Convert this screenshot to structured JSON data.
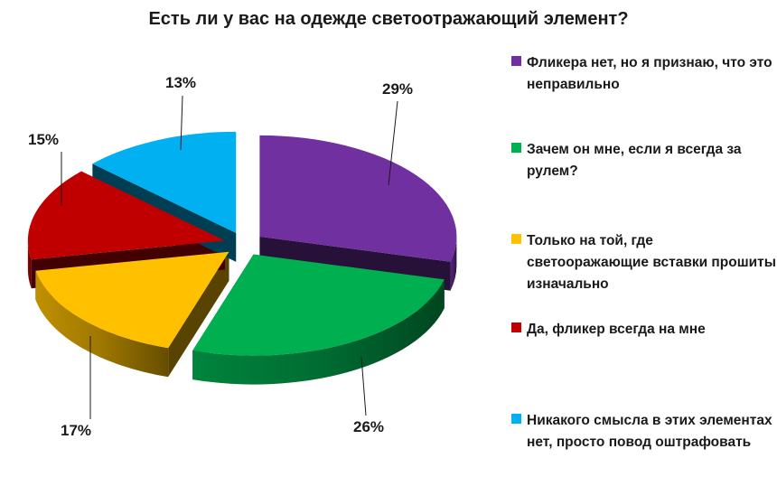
{
  "chart_data": {
    "type": "pie",
    "title": "Есть ли у вас на одежде светоотражающий элемент?",
    "slices": [
      {
        "label": "Фликера нет, но я признаю, что это неправильно",
        "value": 29,
        "value_label": "29%",
        "color": "#7030A0"
      },
      {
        "label": "Зачем он мне, если я всегда за рулем?",
        "value": 26,
        "value_label": "26%",
        "color": "#00B050"
      },
      {
        "label": "Только на той, где светооражающие вставки прошиты изначально",
        "value": 17,
        "value_label": "17%",
        "color": "#FFC000"
      },
      {
        "label": "Да, фликер всегда на мне",
        "value": 15,
        "value_label": "15%",
        "color": "#C00000"
      },
      {
        "label": "Никакого смысла в этих элементах нет, просто повод оштрафовать",
        "value": 13,
        "value_label": "13%",
        "color": "#00B0F0"
      }
    ],
    "legend_position": "right",
    "style": "3d-exploded"
  }
}
